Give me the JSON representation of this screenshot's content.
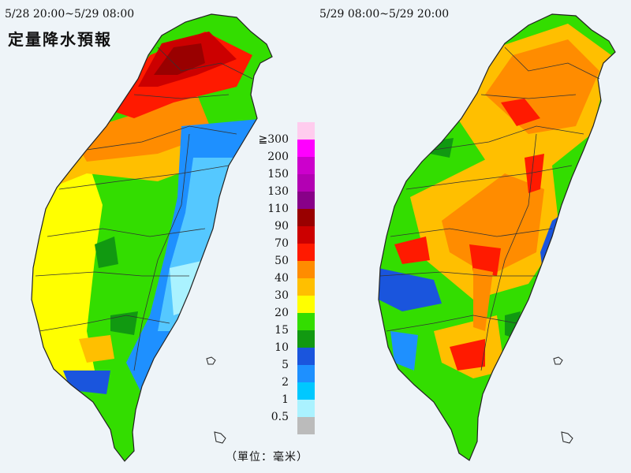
{
  "title": "定量降水預報",
  "periods": {
    "left": "5/28 20:00~5/29 08:00",
    "right": "5/29 08:00~5/29 20:00"
  },
  "unit": "（單位：毫米）",
  "legend": [
    {
      "label": "",
      "color": "#ffccee"
    },
    {
      "label": "≧300",
      "color": "#ff00ff"
    },
    {
      "label": "200",
      "color": "#cc00cc"
    },
    {
      "label": "150",
      "color": "#b300b3"
    },
    {
      "label": "130",
      "color": "#880088"
    },
    {
      "label": "110",
      "color": "#990000"
    },
    {
      "label": "90",
      "color": "#cc0000"
    },
    {
      "label": "70",
      "color": "#ff1a00"
    },
    {
      "label": "50",
      "color": "#ff8c00"
    },
    {
      "label": "40",
      "color": "#ffbf00"
    },
    {
      "label": "30",
      "color": "#ffff00"
    },
    {
      "label": "20",
      "color": "#33dd00"
    },
    {
      "label": "15",
      "color": "#119911"
    },
    {
      "label": "10",
      "color": "#1a55dd"
    },
    {
      "label": "5",
      "color": "#1e90ff"
    },
    {
      "label": "2",
      "color": "#00c8ff"
    },
    {
      "label": "1",
      "color": "#aaf2ff"
    },
    {
      "label": "0.5",
      "color": "#bbbbbb"
    }
  ]
}
